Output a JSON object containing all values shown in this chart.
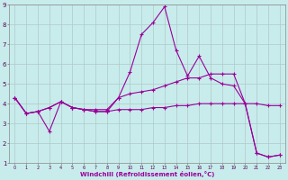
{
  "xlabel": "Windchill (Refroidissement éolien,°C)",
  "background_color": "#c8ecec",
  "line_color": "#990099",
  "grid_color": "#b0c8c8",
  "xlim": [
    -0.5,
    23.5
  ],
  "ylim": [
    1,
    9
  ],
  "xticks": [
    0,
    1,
    2,
    3,
    4,
    5,
    6,
    7,
    8,
    9,
    10,
    11,
    12,
    13,
    14,
    15,
    16,
    17,
    18,
    19,
    20,
    21,
    22,
    23
  ],
  "yticks": [
    1,
    2,
    3,
    4,
    5,
    6,
    7,
    8,
    9
  ],
  "line1_x": [
    0,
    1,
    2,
    3,
    4,
    5,
    6,
    7,
    8,
    9,
    10,
    11,
    12,
    13,
    14,
    15,
    16,
    17,
    18,
    19,
    20,
    21,
    22,
    23
  ],
  "line1_y": [
    4.3,
    3.5,
    3.6,
    2.6,
    4.1,
    3.8,
    3.7,
    3.6,
    3.6,
    4.3,
    5.6,
    7.5,
    8.1,
    8.9,
    6.7,
    5.4,
    6.4,
    5.3,
    5.0,
    4.9,
    4.0,
    1.5,
    1.3,
    1.4
  ],
  "line2_x": [
    0,
    1,
    2,
    3,
    4,
    5,
    6,
    7,
    8,
    9,
    10,
    11,
    12,
    13,
    14,
    15,
    16,
    17,
    18,
    19,
    20,
    21,
    22,
    23
  ],
  "line2_y": [
    4.3,
    3.5,
    3.6,
    3.8,
    4.1,
    3.8,
    3.7,
    3.7,
    3.7,
    4.3,
    4.5,
    4.6,
    4.7,
    4.9,
    5.1,
    5.3,
    5.3,
    5.5,
    5.5,
    5.5,
    4.0,
    1.5,
    1.3,
    1.4
  ],
  "line3_x": [
    0,
    1,
    2,
    3,
    4,
    5,
    6,
    7,
    8,
    9,
    10,
    11,
    12,
    13,
    14,
    15,
    16,
    17,
    18,
    19,
    20,
    21,
    22,
    23
  ],
  "line3_y": [
    4.3,
    3.5,
    3.6,
    3.8,
    4.1,
    3.8,
    3.7,
    3.6,
    3.6,
    3.7,
    3.7,
    3.7,
    3.8,
    3.8,
    3.9,
    3.9,
    4.0,
    4.0,
    4.0,
    4.0,
    4.0,
    4.0,
    3.9,
    3.9
  ]
}
